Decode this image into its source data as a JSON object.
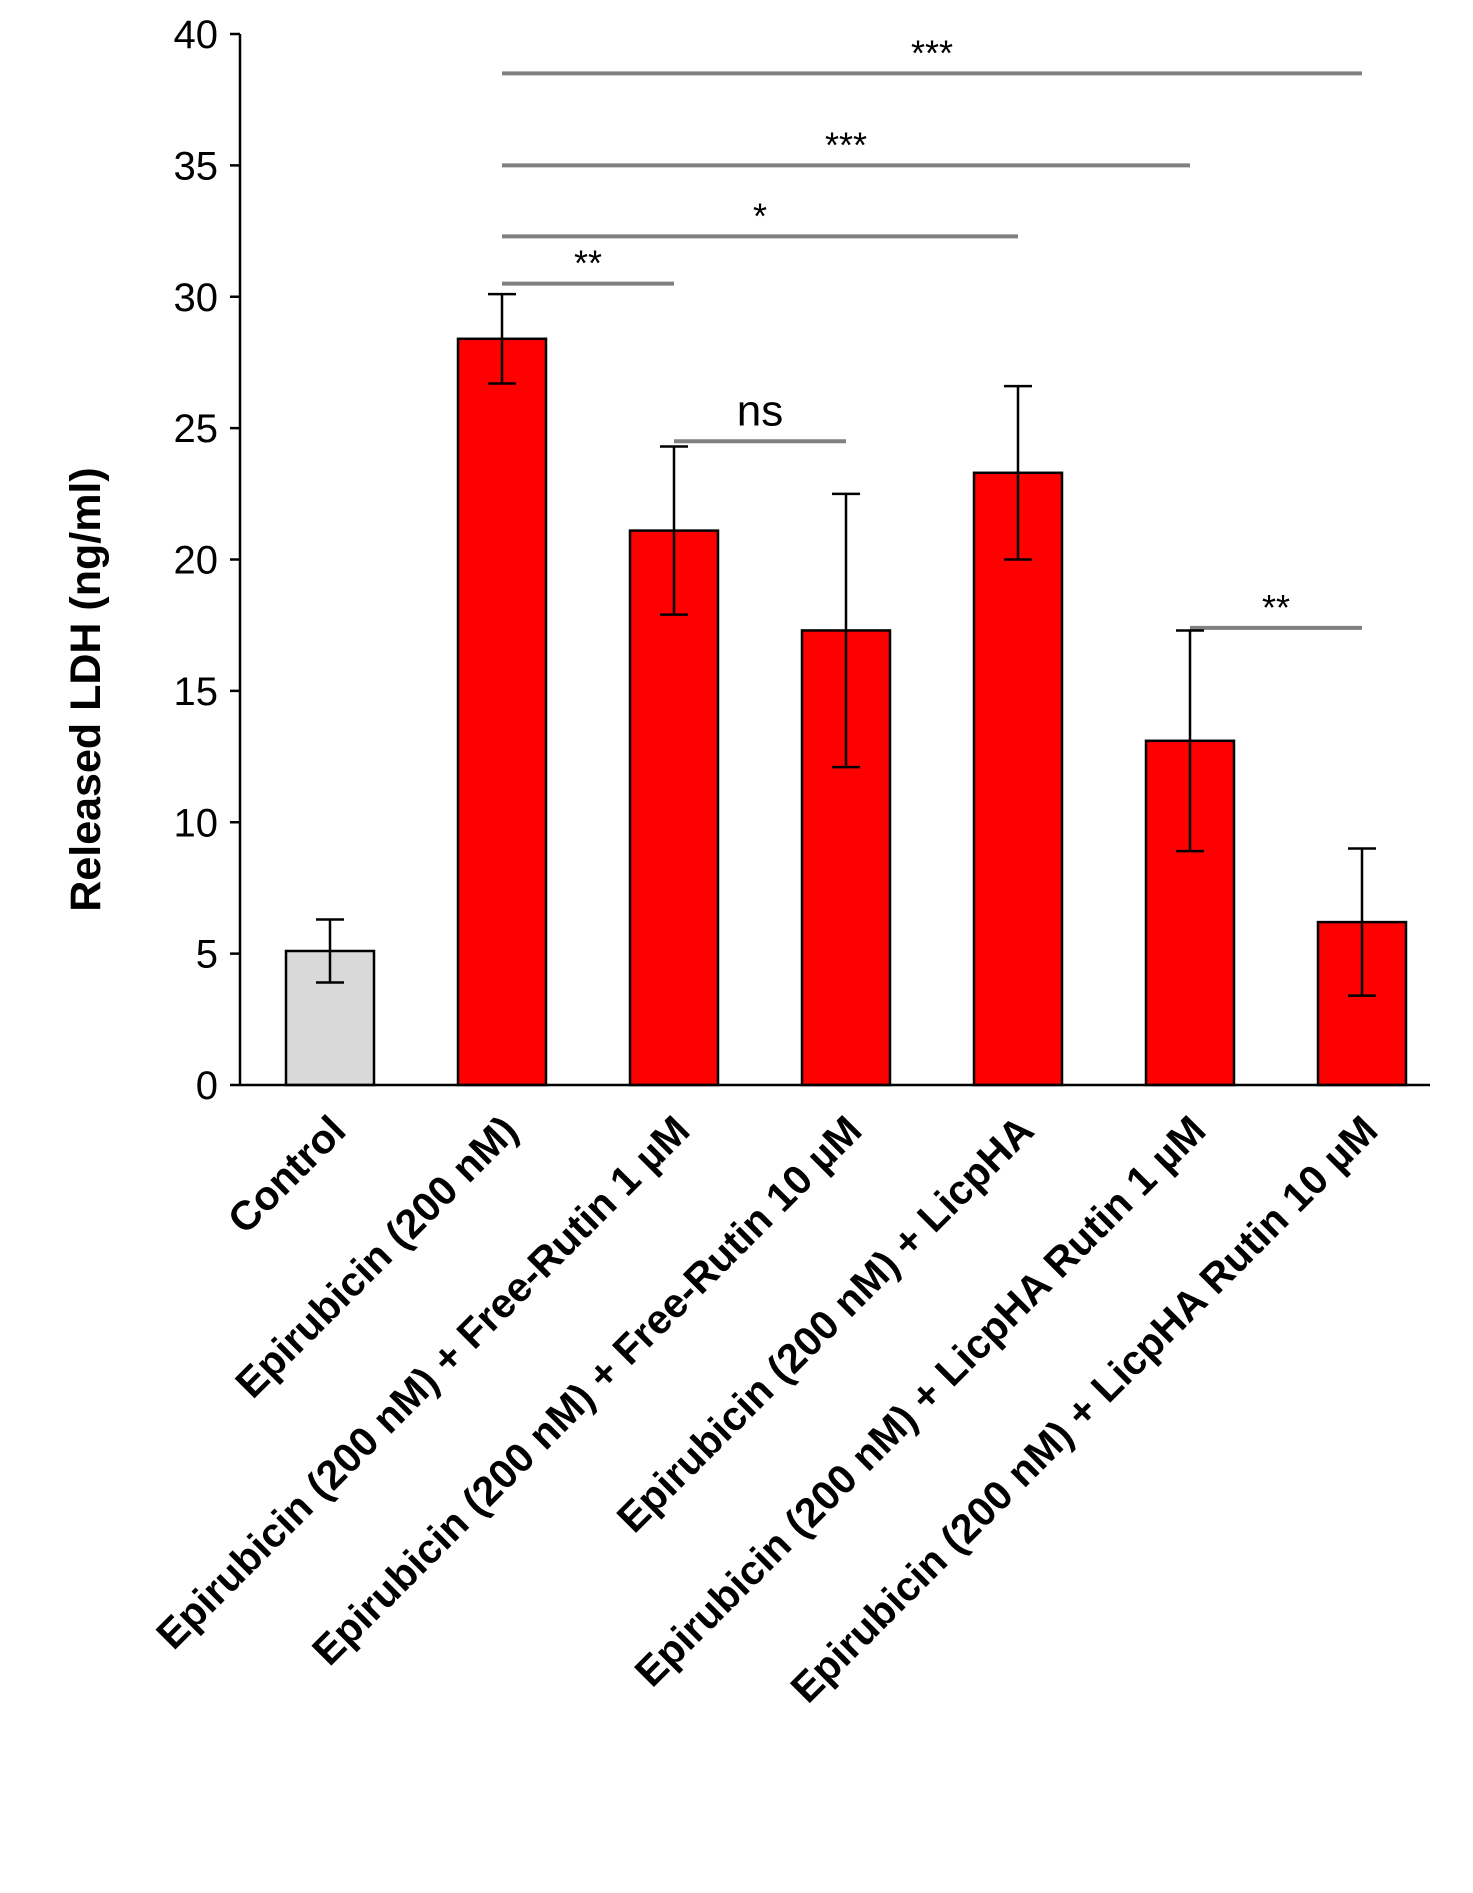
{
  "chart_data": {
    "type": "bar",
    "title": "",
    "xlabel": "",
    "ylabel": "Released LDH (ng/ml)",
    "ylim": [
      0,
      40
    ],
    "yticks": [
      0,
      5,
      10,
      15,
      20,
      25,
      30,
      35,
      40
    ],
    "categories": [
      "Control",
      "Epirubicin (200 nM)",
      "Epirubicin (200 nM) + Free-Rutin 1 µM",
      "Epirubicin (200 nM) + Free-Rutin 10 µM",
      "Epirubicin (200 nM) + LicpHA",
      "Epirubicin (200 nM) + LicpHA Rutin 1 µM",
      "Epirubicin (200 nM) + LicpHA Rutin 10 µM"
    ],
    "values": [
      5.1,
      28.4,
      21.1,
      17.3,
      23.3,
      13.1,
      6.2
    ],
    "errors": [
      1.2,
      1.7,
      3.2,
      5.2,
      3.3,
      4.2,
      2.8
    ],
    "bar_colors": [
      "#d9d9d9",
      "#ff0000",
      "#ff0000",
      "#ff0000",
      "#ff0000",
      "#ff0000",
      "#ff0000"
    ],
    "significance": [
      {
        "from": 1,
        "to": 6,
        "label": "***",
        "y": 38.5
      },
      {
        "from": 1,
        "to": 5,
        "label": "***",
        "y": 35.0
      },
      {
        "from": 1,
        "to": 4,
        "label": "*",
        "y": 32.3
      },
      {
        "from": 1,
        "to": 2,
        "label": "**",
        "y": 30.5
      },
      {
        "from": 2,
        "to": 3,
        "label": "ns",
        "y": 24.5
      },
      {
        "from": 5,
        "to": 6,
        "label": "**",
        "y": 17.4
      }
    ]
  }
}
